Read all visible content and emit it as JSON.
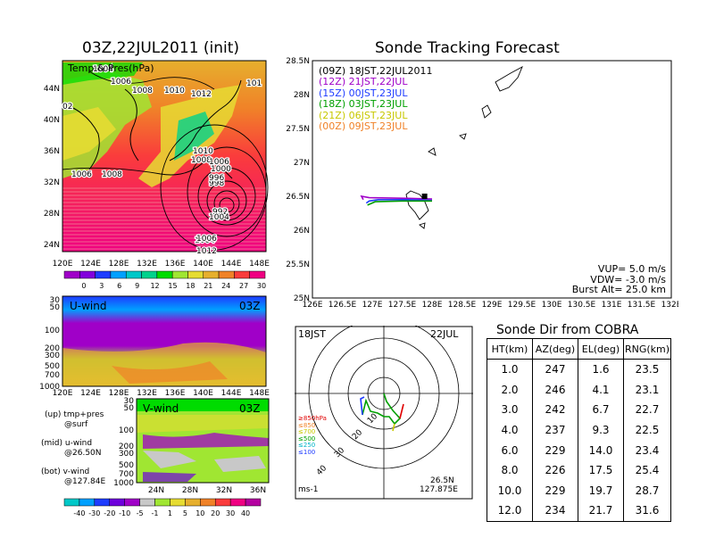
{
  "map_panel": {
    "title": "03Z,22JUL2011 (init)",
    "overlay_label": "Temp & Pres(hPa)",
    "lat_ticks": [
      "44N",
      "40N",
      "36N",
      "32N",
      "28N",
      "24N"
    ],
    "lon_ticks": [
      "120E",
      "124E",
      "128E",
      "132E",
      "136E",
      "140E",
      "144E",
      "148E"
    ],
    "contour_labels": [
      "1004",
      "1006",
      "1008",
      "1010",
      "1012",
      "1006",
      "1008",
      "1010",
      "1008",
      "1006",
      "1004",
      "1012",
      "1000",
      "998",
      "996",
      "992",
      "1004",
      "1006",
      "02",
      "101"
    ],
    "colorbar_ticks": [
      "0",
      "3",
      "6",
      "9",
      "12",
      "15",
      "18",
      "21",
      "24",
      "27",
      "30"
    ]
  },
  "u_panel": {
    "label": "U-wind",
    "time": "03Z",
    "y_ticks": [
      "30",
      "50",
      "100",
      "200",
      "300",
      "500",
      "700",
      "1000"
    ],
    "x_ticks": [
      "120E",
      "124E",
      "128E",
      "132E",
      "136E",
      "140E",
      "144E",
      "148E"
    ]
  },
  "v_panel": {
    "label": "V-wind",
    "time": "03Z",
    "y_ticks": [
      "30",
      "50",
      "100",
      "200",
      "300",
      "500",
      "700",
      "1000"
    ],
    "x_ticks": [
      "24N",
      "28N",
      "32N",
      "36N"
    ]
  },
  "notes": {
    "up": "(up) tmp+pres",
    "up2": "@surf",
    "mid": "(mid) u-wind",
    "mid2": "@26.50N",
    "bot": "(bot) v-wind",
    "bot2": "@127.84E"
  },
  "wind_colorbar_ticks": [
    "-40",
    "-30",
    "-20",
    "-10",
    "-5",
    "-1",
    "1",
    "5",
    "10",
    "20",
    "30",
    "40"
  ],
  "track_panel": {
    "title": "Sonde Tracking Forecast",
    "legend": [
      {
        "text": "(09Z)  18JST,22JUL2011",
        "color": "#000000"
      },
      {
        "text": "(12Z)  21JST,22JUL",
        "color": "#a000c8"
      },
      {
        "text": "(15Z)  00JST,23JUL",
        "color": "#1e3cff"
      },
      {
        "text": "(18Z)  03JST,23JUL",
        "color": "#00a000"
      },
      {
        "text": "(21Z)  06JST,23JUL",
        "color": "#c8c800"
      },
      {
        "text": "(00Z)  09JST,23JUL",
        "color": "#f08228"
      }
    ],
    "y_ticks": [
      "28.5N",
      "28N",
      "27.5N",
      "27N",
      "26.5N",
      "26N",
      "25.5N",
      "25N"
    ],
    "x_ticks": [
      "126E",
      "126.5E",
      "127E",
      "127.5E",
      "128E",
      "128.5E",
      "129E",
      "129.5E",
      "130E",
      "130.5E",
      "131E",
      "131.5E",
      "132E"
    ],
    "params": [
      "VUP=  5.0  m/s",
      "VDW= -3.0  m/s",
      "Burst Alt=  25.0  km"
    ]
  },
  "polar_panel": {
    "time": "18JST",
    "date": "22JUL",
    "rings": [
      "10",
      "20",
      "30",
      "40"
    ],
    "levels": [
      {
        "text": "≥850hPa",
        "color": "#e00000"
      },
      {
        "text": "≤850",
        "color": "#f08228"
      },
      {
        "text": "≤700",
        "color": "#c8c800"
      },
      {
        "text": "≤500",
        "color": "#00a000"
      },
      {
        "text": "≤250",
        "color": "#00b4c8"
      },
      {
        "text": "≤100",
        "color": "#1e3cff"
      }
    ],
    "unit": "ms-1",
    "lat": "26.5N",
    "lon": "127.875E"
  },
  "sonde_table": {
    "title": "Sonde Dir from COBRA",
    "headers": [
      "HT(km)",
      "AZ(deg)",
      "EL(deg)",
      "RNG(km)"
    ],
    "rows": [
      [
        "1.0",
        "247",
        "1.6",
        "23.5"
      ],
      [
        "2.0",
        "246",
        "4.1",
        "23.1"
      ],
      [
        "3.0",
        "242",
        "6.7",
        "22.7"
      ],
      [
        "4.0",
        "237",
        "9.3",
        "22.5"
      ],
      [
        "6.0",
        "229",
        "14.0",
        "23.4"
      ],
      [
        "8.0",
        "226",
        "17.5",
        "25.4"
      ],
      [
        "10.0",
        "229",
        "19.7",
        "28.7"
      ],
      [
        "12.0",
        "234",
        "21.7",
        "31.6"
      ]
    ]
  },
  "chart_data": [
    {
      "type": "heatmap",
      "title": "03Z,22JUL2011 (init)",
      "ylabel": "",
      "xlabel": "",
      "colorbar": [
        0,
        3,
        6,
        9,
        12,
        15,
        18,
        21,
        24,
        27,
        30
      ],
      "xlim": [
        120,
        150
      ],
      "ylim": [
        22,
        47
      ]
    },
    {
      "type": "line",
      "title": "Sonde Tracking Forecast",
      "xlim": [
        126,
        132
      ],
      "ylim": [
        25,
        28.5
      ],
      "series": [
        {
          "name": "(12Z)  21JST,22JUL",
          "x": [
            126.85,
            126.82,
            126.95,
            127.6,
            128.0
          ],
          "y": [
            26.45,
            26.5,
            26.48,
            26.47,
            26.46
          ]
        },
        {
          "name": "(15Z)  00JST,23JUL",
          "x": [
            126.9,
            126.95,
            127.1,
            127.6,
            128.0
          ],
          "y": [
            26.4,
            26.43,
            26.45,
            26.45,
            26.44
          ]
        },
        {
          "name": "(18Z)  03JST,23JUL",
          "x": [
            126.92,
            127.05,
            127.5,
            128.0
          ],
          "y": [
            26.37,
            26.42,
            26.43,
            26.43
          ]
        }
      ],
      "launch": {
        "lon": 127.875,
        "lat": 26.5
      }
    },
    {
      "type": "table",
      "title": "Sonde Dir from COBRA",
      "columns": [
        "HT(km)",
        "AZ(deg)",
        "EL(deg)",
        "RNG(km)"
      ],
      "rows": [
        [
          1.0,
          247,
          1.6,
          23.5
        ],
        [
          2.0,
          246,
          4.1,
          23.1
        ],
        [
          3.0,
          242,
          6.7,
          22.7
        ],
        [
          4.0,
          237,
          9.3,
          22.5
        ],
        [
          6.0,
          229,
          14.0,
          23.4
        ],
        [
          8.0,
          226,
          17.5,
          25.4
        ],
        [
          10.0,
          229,
          19.7,
          28.7
        ],
        [
          12.0,
          234,
          21.7,
          31.6
        ]
      ]
    }
  ],
  "colors": {
    "temp_scale": [
      "#a000c8",
      "#8200dc",
      "#1e3cff",
      "#00a0ff",
      "#00c8c8",
      "#00d28c",
      "#00dc00",
      "#a0e632",
      "#e6dc32",
      "#e6af2d",
      "#f08228",
      "#fa3c3c",
      "#f00082"
    ],
    "wind_scale": [
      "#00c8c8",
      "#00a0ff",
      "#1e3cff",
      "#6e00dc",
      "#a000c8",
      "#c8c8c8",
      "#a0e632",
      "#e6dc32",
      "#e6af2d",
      "#f08228",
      "#fa3c3c",
      "#f00082"
    ]
  }
}
